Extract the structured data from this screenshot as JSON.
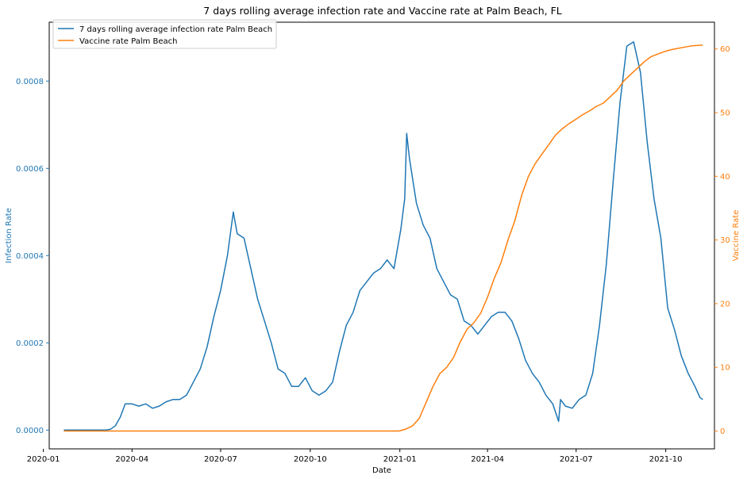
{
  "chart_data": {
    "type": "line",
    "title": "7 days rolling average infection rate and Vaccine rate at Palm Beach, FL",
    "xlabel": "Date",
    "ylabel_left": "Infection Rate",
    "ylabel_right": "Vaccine Rate",
    "x_ticks": [
      "2020-01",
      "2020-04",
      "2020-07",
      "2020-10",
      "2021-01",
      "2021-04",
      "2021-07",
      "2021-10"
    ],
    "y_left_ticks": [
      "0.0000",
      "0.0002",
      "0.0004",
      "0.0006",
      "0.0008"
    ],
    "y_right_ticks": [
      "0",
      "10",
      "20",
      "30",
      "40",
      "50",
      "60"
    ],
    "xlim": [
      "2020-01-07",
      "2021-11-20"
    ],
    "ylim_left": [
      -4.3e-05,
      0.000935
    ],
    "ylim_right": [
      -2.8,
      64.2
    ],
    "legend_position": "upper-left",
    "colors": {
      "infection": "#1f77b4",
      "vaccine": "#ff7f0e"
    },
    "series": [
      {
        "name": "7 days rolling average infection rate Palm Beach",
        "axis": "left",
        "color": "#1f77b4",
        "points": [
          [
            "2020-01-22",
            0
          ],
          [
            "2020-03-05",
            0
          ],
          [
            "2020-03-10",
            2e-06
          ],
          [
            "2020-03-15",
            1e-05
          ],
          [
            "2020-03-20",
            3e-05
          ],
          [
            "2020-03-25",
            6e-05
          ],
          [
            "2020-04-01",
            6e-05
          ],
          [
            "2020-04-08",
            5.5e-05
          ],
          [
            "2020-04-15",
            6e-05
          ],
          [
            "2020-04-22",
            5e-05
          ],
          [
            "2020-04-29",
            5.5e-05
          ],
          [
            "2020-05-06",
            6.5e-05
          ],
          [
            "2020-05-13",
            7e-05
          ],
          [
            "2020-05-20",
            7e-05
          ],
          [
            "2020-05-27",
            8e-05
          ],
          [
            "2020-06-03",
            0.00011
          ],
          [
            "2020-06-10",
            0.00014
          ],
          [
            "2020-06-17",
            0.00019
          ],
          [
            "2020-06-24",
            0.00026
          ],
          [
            "2020-07-01",
            0.00032
          ],
          [
            "2020-07-08",
            0.0004
          ],
          [
            "2020-07-14",
            0.0005
          ],
          [
            "2020-07-18",
            0.00045
          ],
          [
            "2020-07-25",
            0.00044
          ],
          [
            "2020-08-01",
            0.00037
          ],
          [
            "2020-08-08",
            0.0003
          ],
          [
            "2020-08-15",
            0.00025
          ],
          [
            "2020-08-22",
            0.0002
          ],
          [
            "2020-08-29",
            0.00014
          ],
          [
            "2020-09-05",
            0.00013
          ],
          [
            "2020-09-12",
            0.0001
          ],
          [
            "2020-09-19",
            0.0001
          ],
          [
            "2020-09-26",
            0.00012
          ],
          [
            "2020-10-03",
            9e-05
          ],
          [
            "2020-10-10",
            8e-05
          ],
          [
            "2020-10-17",
            9e-05
          ],
          [
            "2020-10-24",
            0.00011
          ],
          [
            "2020-10-31",
            0.00018
          ],
          [
            "2020-11-07",
            0.00024
          ],
          [
            "2020-11-14",
            0.00027
          ],
          [
            "2020-11-21",
            0.00032
          ],
          [
            "2020-11-28",
            0.00034
          ],
          [
            "2020-12-05",
            0.00036
          ],
          [
            "2020-12-12",
            0.00037
          ],
          [
            "2020-12-19",
            0.00039
          ],
          [
            "2020-12-26",
            0.00037
          ],
          [
            "2021-01-02",
            0.00046
          ],
          [
            "2021-01-06",
            0.00053
          ],
          [
            "2021-01-08",
            0.00068
          ],
          [
            "2021-01-11",
            0.00062
          ],
          [
            "2021-01-18",
            0.00052
          ],
          [
            "2021-01-25",
            0.00047
          ],
          [
            "2021-02-01",
            0.00044
          ],
          [
            "2021-02-08",
            0.00037
          ],
          [
            "2021-02-15",
            0.00034
          ],
          [
            "2021-02-22",
            0.00031
          ],
          [
            "2021-03-01",
            0.0003
          ],
          [
            "2021-03-08",
            0.00025
          ],
          [
            "2021-03-15",
            0.00024
          ],
          [
            "2021-03-22",
            0.00022
          ],
          [
            "2021-03-29",
            0.00024
          ],
          [
            "2021-04-05",
            0.00026
          ],
          [
            "2021-04-12",
            0.00027
          ],
          [
            "2021-04-19",
            0.00027
          ],
          [
            "2021-04-26",
            0.00025
          ],
          [
            "2021-05-03",
            0.00021
          ],
          [
            "2021-05-10",
            0.00016
          ],
          [
            "2021-05-17",
            0.00013
          ],
          [
            "2021-05-24",
            0.00011
          ],
          [
            "2021-05-31",
            8e-05
          ],
          [
            "2021-06-07",
            6e-05
          ],
          [
            "2021-06-13",
            2e-05
          ],
          [
            "2021-06-15",
            7e-05
          ],
          [
            "2021-06-20",
            5.5e-05
          ],
          [
            "2021-06-27",
            5e-05
          ],
          [
            "2021-07-04",
            7e-05
          ],
          [
            "2021-07-11",
            8e-05
          ],
          [
            "2021-07-18",
            0.00013
          ],
          [
            "2021-07-25",
            0.00024
          ],
          [
            "2021-08-01",
            0.00038
          ],
          [
            "2021-08-08",
            0.00057
          ],
          [
            "2021-08-15",
            0.00075
          ],
          [
            "2021-08-22",
            0.00088
          ],
          [
            "2021-08-29",
            0.00089
          ],
          [
            "2021-09-05",
            0.00082
          ],
          [
            "2021-09-12",
            0.00066
          ],
          [
            "2021-09-19",
            0.00053
          ],
          [
            "2021-09-26",
            0.00044
          ],
          [
            "2021-10-03",
            0.00028
          ],
          [
            "2021-10-10",
            0.00023
          ],
          [
            "2021-10-17",
            0.00017
          ],
          [
            "2021-10-24",
            0.00013
          ],
          [
            "2021-10-31",
            0.0001
          ],
          [
            "2021-11-05",
            7.5e-05
          ],
          [
            "2021-11-08",
            7e-05
          ]
        ]
      },
      {
        "name": "Vaccine rate Palm Beach",
        "axis": "right",
        "color": "#ff7f0e",
        "points": [
          [
            "2020-01-22",
            0
          ],
          [
            "2020-12-31",
            0
          ],
          [
            "2021-01-07",
            0.3
          ],
          [
            "2021-01-14",
            0.8
          ],
          [
            "2021-01-21",
            2
          ],
          [
            "2021-01-28",
            4.5
          ],
          [
            "2021-02-04",
            7
          ],
          [
            "2021-02-11",
            9
          ],
          [
            "2021-02-18",
            10
          ],
          [
            "2021-02-25",
            11.5
          ],
          [
            "2021-03-04",
            14
          ],
          [
            "2021-03-11",
            16
          ],
          [
            "2021-03-18",
            17
          ],
          [
            "2021-03-25",
            18.5
          ],
          [
            "2021-04-01",
            21
          ],
          [
            "2021-04-08",
            24
          ],
          [
            "2021-04-15",
            26.5
          ],
          [
            "2021-04-22",
            30
          ],
          [
            "2021-04-29",
            33
          ],
          [
            "2021-05-06",
            37
          ],
          [
            "2021-05-13",
            40
          ],
          [
            "2021-05-20",
            42
          ],
          [
            "2021-05-27",
            43.5
          ],
          [
            "2021-06-03",
            45
          ],
          [
            "2021-06-10",
            46.5
          ],
          [
            "2021-06-17",
            47.5
          ],
          [
            "2021-06-24",
            48.3
          ],
          [
            "2021-07-01",
            49
          ],
          [
            "2021-07-08",
            49.7
          ],
          [
            "2021-07-15",
            50.3
          ],
          [
            "2021-07-22",
            51
          ],
          [
            "2021-07-29",
            51.5
          ],
          [
            "2021-08-05",
            52.5
          ],
          [
            "2021-08-12",
            53.5
          ],
          [
            "2021-08-19",
            55
          ],
          [
            "2021-08-26",
            56
          ],
          [
            "2021-09-02",
            57
          ],
          [
            "2021-09-09",
            58
          ],
          [
            "2021-09-16",
            58.8
          ],
          [
            "2021-09-23",
            59.2
          ],
          [
            "2021-09-30",
            59.6
          ],
          [
            "2021-10-07",
            59.9
          ],
          [
            "2021-10-14",
            60.1
          ],
          [
            "2021-10-21",
            60.3
          ],
          [
            "2021-10-28",
            60.5
          ],
          [
            "2021-11-08",
            60.6
          ]
        ]
      }
    ]
  }
}
